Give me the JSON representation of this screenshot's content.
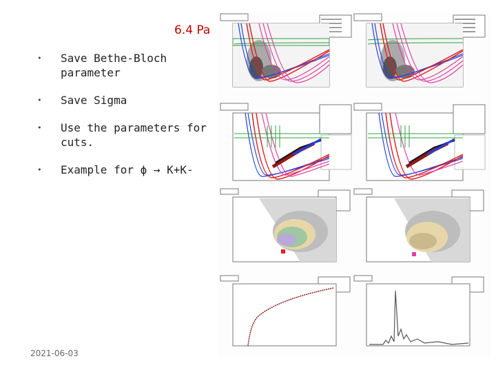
{
  "slide": {
    "title": "6.4 Pa",
    "bullets": [
      "Save Bethe-Bloch parameter",
      "Save Sigma",
      "Use the parameters for cuts.",
      "Example for ϕ → K+K-"
    ],
    "footer_date": "2021-06-03"
  },
  "colors": {
    "title": "#c00000",
    "curve_red": "#e02020",
    "curve_pink": "#e040a0",
    "curve_blue": "#2040e0",
    "curve_green": "#30a040",
    "curve_cyan": "#20b0c0",
    "hist_brown": "#8b1a1a"
  }
}
